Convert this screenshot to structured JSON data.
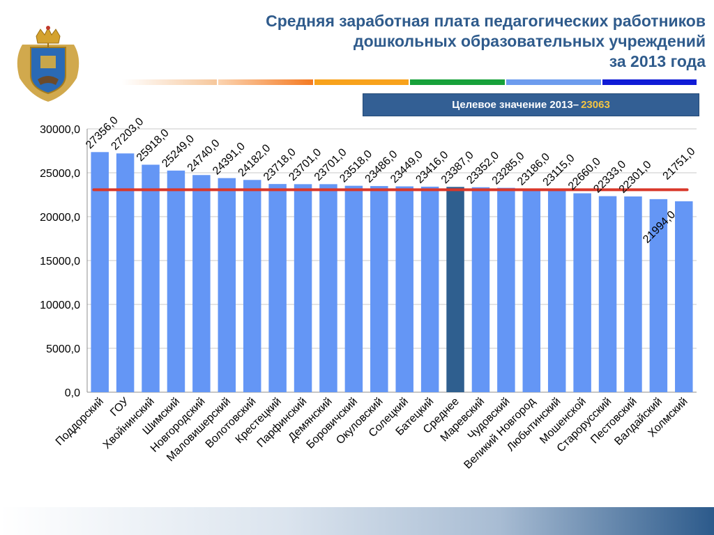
{
  "title": {
    "line1": "Средняя заработная плата педагогических работников",
    "line2": "дошкольных образовательных учреждений",
    "line3": "за 2013 года"
  },
  "target": {
    "label": "Целевое значение 2013–",
    "value": "23063"
  },
  "colors": {
    "bar": "#6496f5",
    "bar_highlight": "#2f5f8f",
    "target_line": "#d9382a",
    "title": "#2f5b8c",
    "banner": "#335f94",
    "banner_value": "#f5c542",
    "stripes": [
      "#fbe2cf",
      "#f48a2a",
      "#f8a21c",
      "#17a13a",
      "#6d9cee",
      "#0f1bd6"
    ]
  },
  "chart_data": {
    "type": "bar",
    "categories": [
      "Поддорский",
      "ГОУ",
      "Хвойнинский",
      "Шимский",
      "Новгородский",
      "Маловишерский",
      "Волотовский",
      "Крестецкий",
      "Парфинский",
      "Демянский",
      "Боровичский",
      "Окуловский",
      "Солецкий",
      "Батецкий",
      "Среднее",
      "Маревский",
      "Чудовский",
      "Великий  Новгород",
      "Любытинский",
      "Мошенской",
      "Старорусский",
      "Пестовский",
      "Валдайский",
      "Холмский"
    ],
    "values": [
      27356.0,
      27203.0,
      25918.0,
      25249.0,
      24740.0,
      24391.0,
      24182.0,
      23718.0,
      23701.0,
      23701.0,
      23518.0,
      23486.0,
      23449.0,
      23416.0,
      23387.0,
      23352.0,
      23285.0,
      23186.0,
      23115.0,
      22660.0,
      22333.0,
      22301.0,
      21994.0,
      21751.0
    ],
    "data_labels": [
      "27356,0",
      "27203,0",
      "25918,0",
      "25249,0",
      "24740,0",
      "24391,0",
      "24182,0",
      "23718,0",
      "23701,0",
      "23701,0",
      "23518,0",
      "23486,0",
      "23449,0",
      "23416,0",
      "23387,0",
      "23352,0",
      "23285,0",
      "23186,0",
      "23115,0",
      "22660,0",
      "22333,0",
      "22301,0",
      "21994,0",
      "21751,0"
    ],
    "highlight_category": "Среднее",
    "target_value": 23063,
    "yticks": [
      0,
      5000,
      10000,
      15000,
      20000,
      25000,
      30000
    ],
    "ytick_labels": [
      "0,0",
      "5000,0",
      "10000,0",
      "15000,0",
      "20000,0",
      "25000,0",
      "30000,0"
    ],
    "ylim": [
      0,
      30000
    ],
    "grid": true,
    "xlabel": "",
    "ylabel": "",
    "legend": false
  }
}
